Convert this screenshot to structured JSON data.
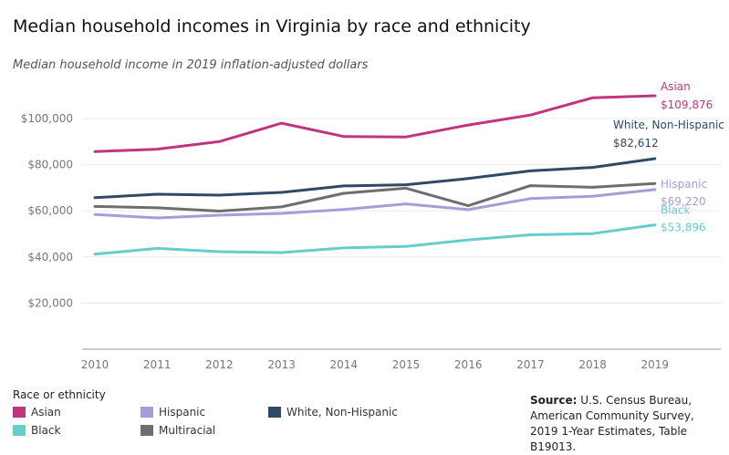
{
  "title": "Median household incomes in Virginia by race and ethnicity",
  "subtitle": "Median household income in 2019 inflation-adjusted dollars",
  "legend": {
    "title": "Race or ethnicity",
    "items": [
      {
        "label": "Asian",
        "color": "#c0357e"
      },
      {
        "label": "Black",
        "color": "#66cccc"
      },
      {
        "label": "Hispanic",
        "color": "#a99bd6"
      },
      {
        "label": "Multiracial",
        "color": "#6e6e6e"
      },
      {
        "label": "White, Non-Hispanic",
        "color": "#2e4a66"
      }
    ]
  },
  "source": {
    "label": "Source:",
    "text": "U.S. Census Bureau, American Community Survey, 2019 1-Year Estimates, Table B19013."
  },
  "chart_data": {
    "type": "line",
    "x": [
      2010,
      2011,
      2012,
      2013,
      2014,
      2015,
      2016,
      2017,
      2018,
      2019
    ],
    "ylim": [
      0,
      120000
    ],
    "yticks": [
      20000,
      40000,
      60000,
      80000,
      100000
    ],
    "ytick_labels": [
      "$20,000",
      "$40,000",
      "$60,000",
      "$80,000",
      "$100,000"
    ],
    "grid": true,
    "series": [
      {
        "name": "Asian",
        "color": "#c0357e",
        "end_label": "$109,876",
        "values": [
          85700,
          86700,
          90000,
          98000,
          92200,
          92000,
          97200,
          101500,
          109000,
          109876
        ]
      },
      {
        "name": "White, Non-Hispanic",
        "color": "#2e4a66",
        "end_label": "$82,612",
        "values": [
          65700,
          67200,
          66800,
          68000,
          70800,
          71300,
          74000,
          77300,
          78800,
          82612
        ]
      },
      {
        "name": "Multiracial",
        "color": "#6e6e6e",
        "end_label": "",
        "values": [
          61900,
          61300,
          59900,
          61700,
          67600,
          69800,
          62200,
          70900,
          70200,
          71800
        ]
      },
      {
        "name": "Hispanic",
        "color": "#a99bd6",
        "end_label": "$69,220",
        "values": [
          58400,
          56900,
          58100,
          58900,
          60600,
          63000,
          60500,
          65300,
          66300,
          69220
        ]
      },
      {
        "name": "Black",
        "color": "#66cccc",
        "end_label": "$53,896",
        "values": [
          41200,
          43700,
          42300,
          41900,
          43900,
          44600,
          47400,
          49600,
          50100,
          53896
        ]
      }
    ]
  }
}
